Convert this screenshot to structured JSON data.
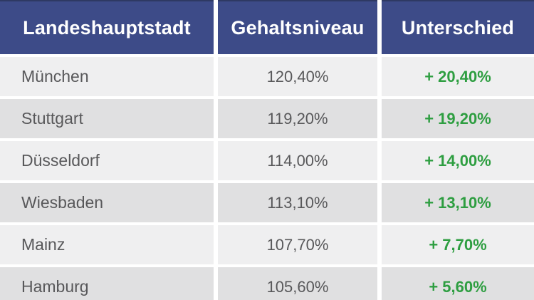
{
  "colors": {
    "header_bg": "#3d4b88",
    "header_top_line": "#2e3963",
    "header_fg": "#ffffff",
    "row_light": "#efeff0",
    "row_dark": "#e0e0e1",
    "body_fg": "#58585a",
    "positive_green": "#2e9e41"
  },
  "chart_data": {
    "type": "table",
    "columns": [
      "Landeshauptstadt",
      "Gehaltsniveau",
      "Unterschied"
    ],
    "rows": [
      {
        "city": "München",
        "level": "120,40%",
        "diff": "+ 20,40%",
        "level_value": 120.4,
        "diff_value": 20.4
      },
      {
        "city": "Stuttgart",
        "level": "119,20%",
        "diff": "+ 19,20%",
        "level_value": 119.2,
        "diff_value": 19.2
      },
      {
        "city": "Düsseldorf",
        "level": "114,00%",
        "diff": "+ 14,00%",
        "level_value": 114.0,
        "diff_value": 14.0
      },
      {
        "city": "Wiesbaden",
        "level": "113,10%",
        "diff": "+ 13,10%",
        "level_value": 113.1,
        "diff_value": 13.1
      },
      {
        "city": "Mainz",
        "level": "107,70%",
        "diff": "+ 7,70%",
        "level_value": 107.7,
        "diff_value": 7.7
      },
      {
        "city": "Hamburg",
        "level": "105,60%",
        "diff": "+ 5,60%",
        "level_value": 105.6,
        "diff_value": 5.6
      }
    ],
    "title": "",
    "notes": "salary level table by state capital, green = positive difference"
  }
}
